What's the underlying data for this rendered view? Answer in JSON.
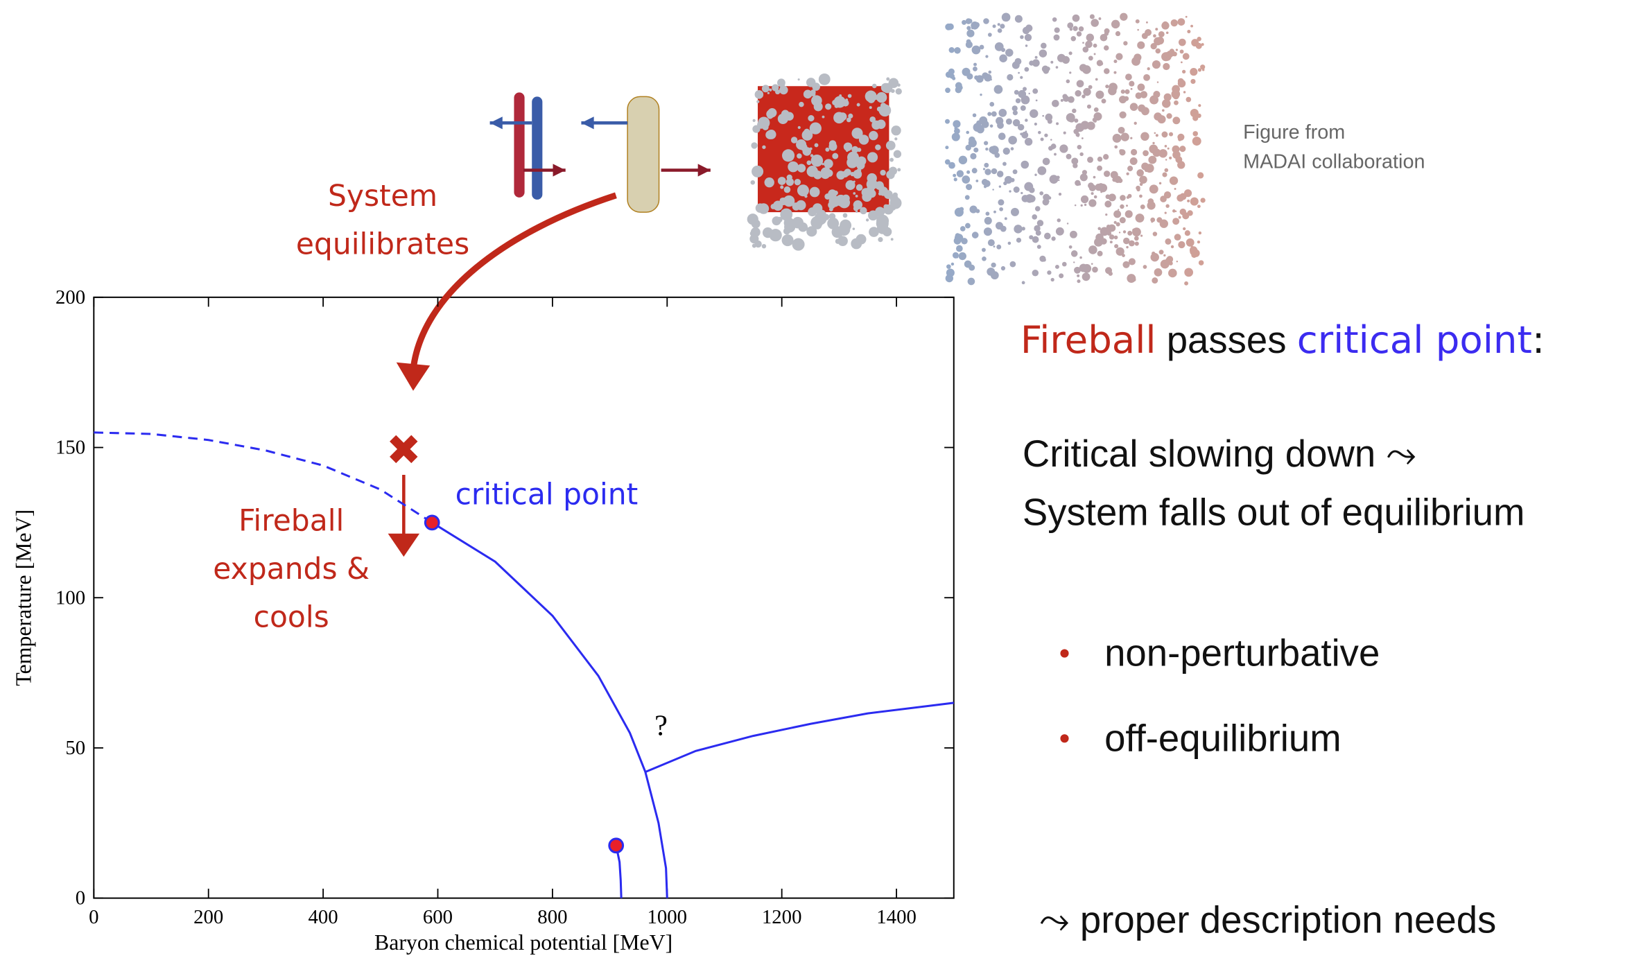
{
  "chart_data": {
    "type": "line",
    "xlabel": "Baryon chemical potential [MeV]",
    "ylabel": "Temperature [MeV]",
    "xlim": [
      0,
      1500
    ],
    "ylim": [
      0,
      200
    ],
    "xticks": [
      0,
      200,
      400,
      600,
      800,
      1000,
      1200,
      1400
    ],
    "yticks": [
      0,
      50,
      100,
      150,
      200
    ],
    "series": [
      {
        "color": "#2b2bf0",
        "dash": true,
        "x": [
          0,
          100,
          200,
          300,
          400,
          500,
          590
        ],
        "values": [
          155,
          154.5,
          152.5,
          149,
          144,
          136,
          125
        ]
      },
      {
        "color": "#2b2bf0",
        "dash": false,
        "x": [
          590,
          700,
          800,
          880,
          935,
          962,
          985,
          998,
          1000
        ],
        "values": [
          125,
          112,
          94,
          74,
          55,
          42,
          25,
          10,
          0
        ]
      },
      {
        "color": "#2b2bf0",
        "dash": false,
        "x": [
          962,
          1050,
          1150,
          1250,
          1350,
          1500
        ],
        "values": [
          42,
          49,
          54,
          58,
          61.5,
          65
        ]
      },
      {
        "color": "#2b2bf0",
        "dash": false,
        "x": [
          911,
          917,
          919,
          920
        ],
        "values": [
          17.5,
          12,
          6,
          0
        ]
      }
    ],
    "points": {
      "color": "#e8202a",
      "x": [
        590,
        911
      ],
      "values": [
        125,
        17.5
      ]
    },
    "annotations": {
      "equilibrates": [
        "System",
        "equilibrates"
      ],
      "expands": [
        "Fireball",
        "expands &",
        "cools"
      ],
      "critical": "critical point",
      "unknown": "?"
    }
  },
  "slide": {
    "caption": [
      "Figure from",
      "MADAI collaboration"
    ],
    "heading": [
      "Fireball",
      " passes ",
      "critical point",
      ":"
    ],
    "body": [
      "Critical slowing down ⤳",
      "System falls out of equilibrium"
    ],
    "bullets": [
      "non-perturbative",
      "off-equilibrium"
    ],
    "footer": "⤳ proper description needs"
  }
}
